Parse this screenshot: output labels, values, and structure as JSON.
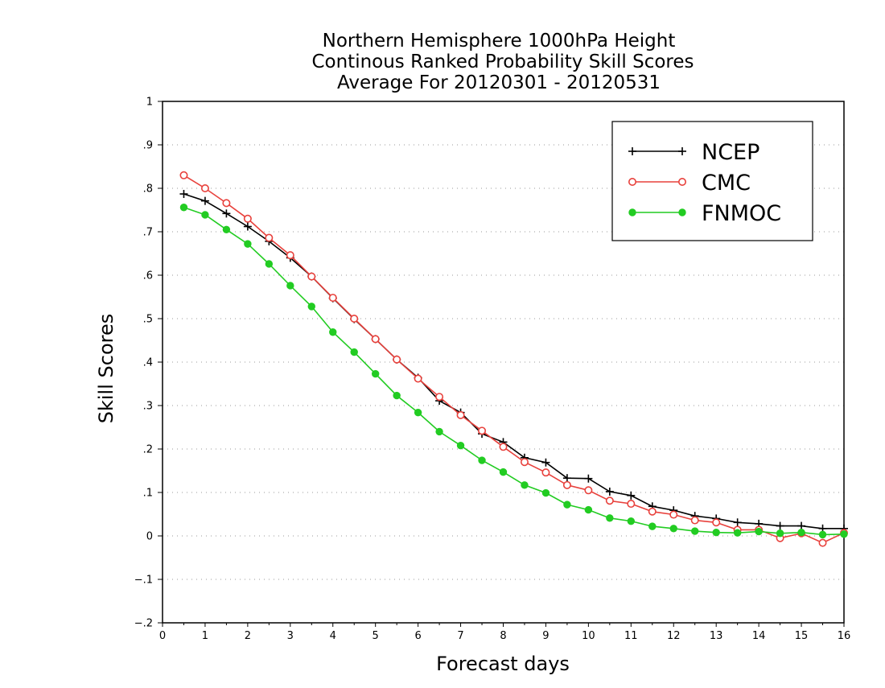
{
  "chart_data": {
    "type": "line",
    "title": [
      "Northern Hemisphere 1000hPa Height",
      "Continous Ranked Probability Skill Scores",
      "Average For 20120301 - 20120531"
    ],
    "xlabel": "Forecast days",
    "ylabel": "Skill Scores",
    "xlim": [
      0,
      16
    ],
    "ylim": [
      -0.2,
      1
    ],
    "xticks": [
      0,
      1,
      2,
      3,
      4,
      5,
      6,
      7,
      8,
      9,
      10,
      11,
      12,
      13,
      14,
      15,
      16
    ],
    "yticks": [
      -0.2,
      -0.1,
      0,
      0.1,
      0.2,
      0.3,
      0.4,
      0.5,
      0.6,
      0.7,
      0.8,
      0.9,
      1
    ],
    "grid": "horizontal-dotted",
    "legend_position": "top-right",
    "x": [
      0.5,
      1,
      1.5,
      2,
      2.5,
      3,
      3.5,
      4,
      4.5,
      5,
      5.5,
      6,
      6.5,
      7,
      7.5,
      8,
      8.5,
      9,
      9.5,
      10,
      10.5,
      11,
      11.5,
      12,
      12.5,
      13,
      13.5,
      14,
      14.5,
      15,
      15.5,
      16
    ],
    "series": [
      {
        "name": "NCEP",
        "color": "#000000",
        "marker": "plus",
        "values": [
          0.787,
          0.771,
          0.742,
          0.712,
          0.678,
          0.64,
          0.597,
          0.547,
          0.499,
          0.453,
          0.406,
          0.364,
          0.311,
          0.284,
          0.235,
          0.216,
          0.18,
          0.169,
          0.133,
          0.132,
          0.102,
          0.093,
          0.068,
          0.059,
          0.046,
          0.04,
          0.031,
          0.028,
          0.023,
          0.023,
          0.017,
          0.017
        ]
      },
      {
        "name": "CMC",
        "color": "#e8413c",
        "marker": "open-circle",
        "values": [
          0.83,
          0.8,
          0.766,
          0.73,
          0.686,
          0.646,
          0.597,
          0.548,
          0.5,
          0.453,
          0.406,
          0.362,
          0.32,
          0.278,
          0.242,
          0.205,
          0.17,
          0.146,
          0.117,
          0.105,
          0.081,
          0.074,
          0.056,
          0.049,
          0.036,
          0.031,
          0.014,
          0.014,
          -0.005,
          0.006,
          -0.016,
          0.007
        ]
      },
      {
        "name": "FNMOC",
        "color": "#22cc22",
        "marker": "filled-circle",
        "values": [
          0.756,
          0.739,
          0.705,
          0.672,
          0.626,
          0.576,
          0.528,
          0.469,
          0.423,
          0.373,
          0.323,
          0.284,
          0.24,
          0.208,
          0.174,
          0.147,
          0.117,
          0.099,
          0.072,
          0.06,
          0.041,
          0.034,
          0.022,
          0.017,
          0.011,
          0.008,
          0.007,
          0.01,
          0.006,
          0.008,
          0.003,
          0.004
        ]
      }
    ]
  }
}
